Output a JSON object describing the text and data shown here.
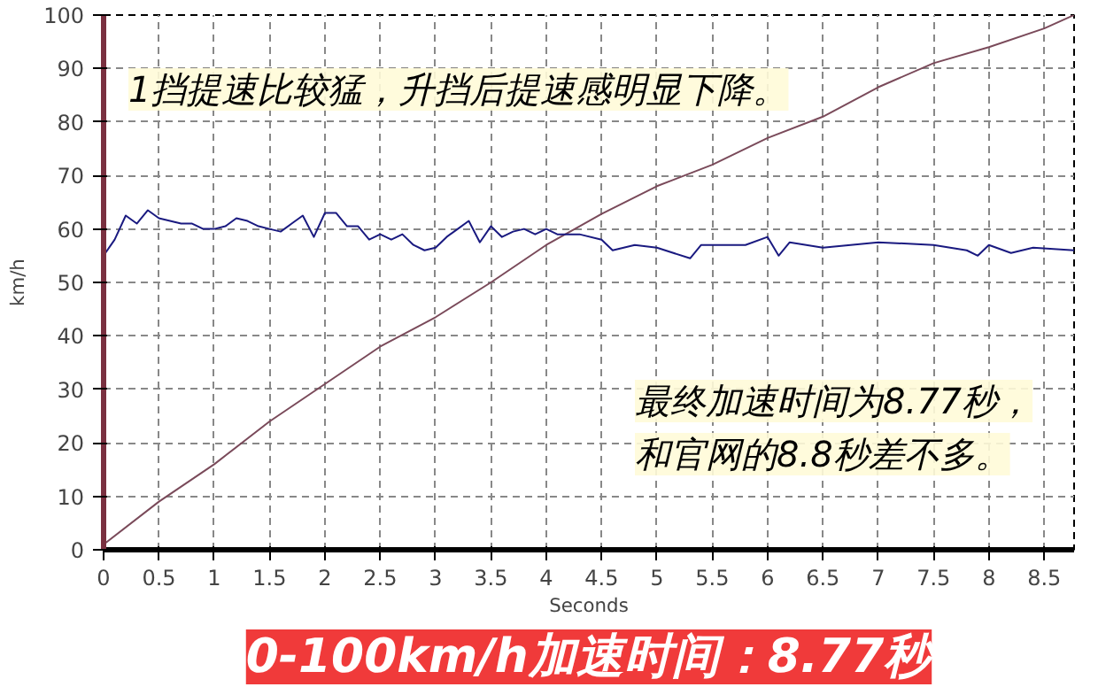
{
  "chart_data": {
    "type": "line",
    "title": "0-100km/h加速时间：8.77秒",
    "xlabel": "Seconds",
    "ylabel": "km/h",
    "annotations": [
      "1挡提速比较猛，升挡后提速感明显下降。",
      "最终加速时间为8.77秒，",
      "和官网的8.8秒差不多。"
    ],
    "xlim": [
      0,
      8.77
    ],
    "ylim": [
      0,
      100
    ],
    "xticks": [
      0,
      0.5,
      1,
      1.5,
      2,
      2.5,
      3,
      3.5,
      4,
      4.5,
      5,
      5.5,
      6,
      6.5,
      7,
      7.5,
      8,
      8.5
    ],
    "yticks": [
      0,
      10,
      20,
      30,
      40,
      50,
      60,
      70,
      80,
      90,
      100
    ],
    "grid": true,
    "line_style": "solid",
    "marker": "none",
    "series": [
      {
        "color": "#7a4a5a",
        "x": [
          0,
          0.5,
          1,
          1.5,
          2,
          2.5,
          3,
          3.5,
          4,
          4.5,
          5,
          5.5,
          6,
          6.5,
          7,
          7.5,
          8,
          8.5,
          8.77
        ],
        "values": [
          1,
          9,
          16,
          24,
          31,
          38,
          43.5,
          50,
          57,
          62.8,
          68,
          72,
          77,
          81,
          86.5,
          91,
          94,
          97.5,
          100
        ]
      },
      {
        "color": "#1a1a80",
        "x": [
          0,
          0.1,
          0.2,
          0.3,
          0.4,
          0.5,
          0.6,
          0.7,
          0.8,
          0.9,
          1,
          1.1,
          1.2,
          1.3,
          1.4,
          1.5,
          1.6,
          1.7,
          1.8,
          1.9,
          2,
          2.1,
          2.2,
          2.3,
          2.4,
          2.5,
          2.6,
          2.7,
          2.8,
          2.9,
          3,
          3.1,
          3.2,
          3.3,
          3.4,
          3.5,
          3.6,
          3.7,
          3.8,
          3.9,
          4,
          4.1,
          4.3,
          4.5,
          4.6,
          4.8,
          5,
          5.3,
          5.4,
          5.6,
          5.8,
          6,
          6.1,
          6.2,
          6.5,
          7,
          7.5,
          7.8,
          7.9,
          8,
          8.2,
          8.4,
          8.77
        ],
        "values": [
          55,
          58,
          62.5,
          61,
          63.5,
          62,
          61.5,
          61,
          61,
          60,
          60,
          60.5,
          62,
          61.5,
          60.5,
          60,
          59.5,
          61,
          62.5,
          58.5,
          63,
          63,
          60.5,
          60.5,
          58,
          59,
          58,
          59,
          57,
          56,
          56.5,
          58.5,
          60,
          61.5,
          57.5,
          60.5,
          58.5,
          59.5,
          60,
          59,
          60,
          59,
          59,
          58,
          56,
          57,
          56.5,
          54.5,
          57,
          57,
          57,
          58.5,
          55,
          57.5,
          56.5,
          57.5,
          57,
          56,
          55,
          57,
          55.5,
          56.5,
          56
        ]
      }
    ]
  }
}
